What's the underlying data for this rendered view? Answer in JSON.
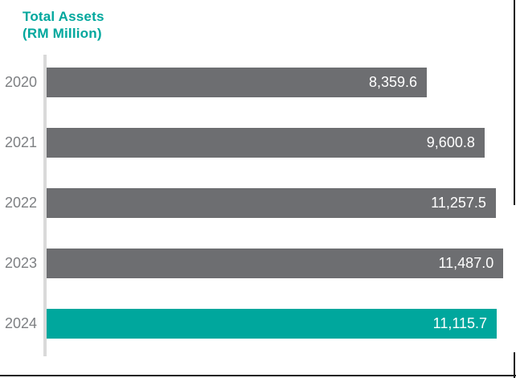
{
  "page": {
    "background": "#FFFFFF",
    "border_color": "#1A1A1A"
  },
  "chart_data": {
    "type": "bar",
    "orientation": "horizontal",
    "title": "Total Assets",
    "subtitle": "(RM Million)",
    "title_color": "#00A79D",
    "categories": [
      "2020",
      "2021",
      "2022",
      "2023",
      "2024"
    ],
    "values": [
      8359.6,
      9600.8,
      11257.5,
      11487.0,
      11115.7
    ],
    "xlim": [
      0,
      11487
    ],
    "grid": "off",
    "legend": "none",
    "value_labels_position": "inside-end",
    "default_bar_color": "#6D6E71",
    "highlight_bar_color": "#00A79D",
    "axis_line_color": "#D9D9D9",
    "category_label_color": "#7E8083",
    "value_label_color": "#FFFFFF",
    "rows": [
      {
        "category": "2020",
        "value": 8359.6,
        "value_label": "8,359.6",
        "bar_width": "81%",
        "bar_color": "#6D6E71"
      },
      {
        "category": "2021",
        "value": 9600.8,
        "value_label": "9,600.8",
        "bar_width": "93.3%",
        "bar_color": "#6D6E71"
      },
      {
        "category": "2022",
        "value": 11257.5,
        "value_label": "11,257.5",
        "bar_width": "95.7%",
        "bar_color": "#6D6E71"
      },
      {
        "category": "2023",
        "value": 11487.0,
        "value_label": "11,487.0",
        "bar_width": "97.3%",
        "bar_color": "#6D6E71"
      },
      {
        "category": "2024",
        "value": 11115.7,
        "value_label": "11,115.7",
        "bar_width": "95.9%",
        "bar_color": "#00A79D"
      }
    ]
  }
}
